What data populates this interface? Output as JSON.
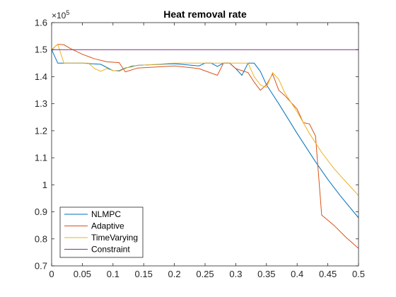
{
  "chart_data": {
    "type": "line",
    "title": "Heat removal rate",
    "xlabel": "",
    "ylabel": "",
    "xlim": [
      0,
      0.5
    ],
    "ylim": [
      0.7,
      1.6
    ],
    "y_exponent_label": "×10",
    "y_exponent_power": "5",
    "x_ticks": [
      0,
      0.05,
      0.1,
      0.15,
      0.2,
      0.25,
      0.3,
      0.35,
      0.4,
      0.45,
      0.5
    ],
    "x_tick_labels": [
      "0",
      "0.05",
      "0.1",
      "0.15",
      "0.2",
      "0.25",
      "0.3",
      "0.35",
      "0.4",
      "0.45",
      "0.5"
    ],
    "y_ticks": [
      0.7,
      0.8,
      0.9,
      1.0,
      1.1,
      1.2,
      1.3,
      1.4,
      1.5,
      1.6
    ],
    "y_tick_labels": [
      "0.7",
      "0.8",
      "0.9",
      "1",
      "1.1",
      "1.2",
      "1.3",
      "1.4",
      "1.5",
      "1.6"
    ],
    "grid": false,
    "legend_position": "bottom-left",
    "series": [
      {
        "name": "NLMPC",
        "color": "#0072BD",
        "x": [
          0,
          0.01,
          0.02,
          0.05,
          0.08,
          0.1,
          0.11,
          0.12,
          0.14,
          0.2,
          0.24,
          0.25,
          0.26,
          0.27,
          0.28,
          0.29,
          0.3,
          0.31,
          0.32,
          0.33,
          0.34,
          0.35,
          0.37,
          0.4,
          0.43,
          0.45,
          0.47,
          0.5
        ],
        "y": [
          1.5,
          1.45,
          1.45,
          1.45,
          1.446,
          1.422,
          1.422,
          1.432,
          1.442,
          1.448,
          1.44,
          1.45,
          1.45,
          1.438,
          1.45,
          1.45,
          1.43,
          1.405,
          1.45,
          1.45,
          1.42,
          1.37,
          1.3,
          1.19,
          1.085,
          1.02,
          0.96,
          0.878
        ]
      },
      {
        "name": "Adaptive",
        "color": "#D95319",
        "x": [
          0,
          0.01,
          0.02,
          0.03,
          0.05,
          0.07,
          0.09,
          0.11,
          0.12,
          0.14,
          0.2,
          0.24,
          0.27,
          0.28,
          0.29,
          0.3,
          0.32,
          0.33,
          0.34,
          0.35,
          0.36,
          0.37,
          0.38,
          0.4,
          0.41,
          0.42,
          0.43,
          0.44,
          0.46,
          0.48,
          0.5
        ],
        "y": [
          1.5,
          1.52,
          1.518,
          1.505,
          1.483,
          1.466,
          1.455,
          1.452,
          1.418,
          1.432,
          1.44,
          1.43,
          1.405,
          1.45,
          1.45,
          1.43,
          1.415,
          1.38,
          1.35,
          1.37,
          1.41,
          1.35,
          1.33,
          1.28,
          1.23,
          1.225,
          1.18,
          0.888,
          0.85,
          0.805,
          0.765
        ]
      },
      {
        "name": "TimeVarying",
        "color": "#EDB120",
        "x": [
          0,
          0.01,
          0.02,
          0.03,
          0.06,
          0.07,
          0.08,
          0.09,
          0.1,
          0.11,
          0.13,
          0.2,
          0.24,
          0.26,
          0.28,
          0.3,
          0.32,
          0.33,
          0.34,
          0.35,
          0.36,
          0.37,
          0.38,
          0.4,
          0.42,
          0.44,
          0.46,
          0.48,
          0.5
        ],
        "y": [
          1.5,
          1.52,
          1.45,
          1.45,
          1.45,
          1.43,
          1.42,
          1.43,
          1.423,
          1.42,
          1.44,
          1.45,
          1.45,
          1.45,
          1.45,
          1.45,
          1.45,
          1.4,
          1.37,
          1.36,
          1.415,
          1.39,
          1.34,
          1.27,
          1.19,
          1.12,
          1.06,
          1.01,
          0.96
        ]
      },
      {
        "name": "Constraint",
        "color": "#7E2F8E",
        "x": [
          0,
          0.5
        ],
        "y": [
          1.5,
          1.5
        ]
      }
    ]
  }
}
